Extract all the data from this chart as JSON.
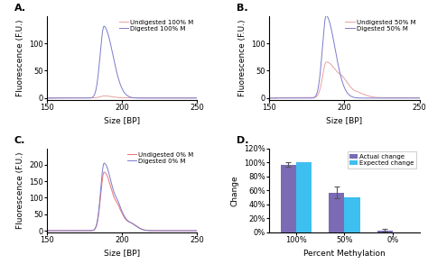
{
  "panel_A": {
    "label": "A.",
    "undigested_color": "#7b7bcd",
    "digested_color": "#e8a0a0",
    "legend": [
      "Undigested 100% M",
      "Digested 100% M"
    ],
    "xlim": [
      150,
      250
    ],
    "ylim": [
      -3,
      150
    ],
    "yticks": [
      0,
      50,
      100
    ],
    "xlabel": "Size [BP]",
    "ylabel": "Fluorescence (F.U.)"
  },
  "panel_B": {
    "label": "B.",
    "undigested_color": "#7b7bcd",
    "digested_color": "#e8a0a0",
    "legend": [
      "Undigested 50% M",
      "Digested 50% M"
    ],
    "xlim": [
      150,
      250
    ],
    "ylim": [
      -3,
      150
    ],
    "yticks": [
      0,
      50,
      100
    ],
    "xlabel": "Size [BP]",
    "ylabel": "Fluorescence (F.U.)"
  },
  "panel_C": {
    "label": "C.",
    "undigested_color": "#7b7bcd",
    "digested_color": "#e87575",
    "legend": [
      "Undigested 0% M",
      "Digested 0% M"
    ],
    "xlim": [
      150,
      250
    ],
    "ylim": [
      -5,
      250
    ],
    "yticks": [
      0,
      50,
      100,
      150,
      200
    ],
    "xlabel": "Size [BP]",
    "ylabel": "Fluorescence (F.U.)"
  },
  "panel_D": {
    "label": "D.",
    "categories": [
      "100%",
      "50%",
      "0%"
    ],
    "actual_values": [
      97,
      57,
      3
    ],
    "expected_values": [
      100,
      50,
      0
    ],
    "actual_errors": [
      3,
      8,
      1.5
    ],
    "actual_color": "#7b6bb5",
    "expected_color": "#3dbfef",
    "ylim": [
      0,
      120
    ],
    "yticks": [
      0,
      20,
      40,
      60,
      80,
      100,
      120
    ],
    "xlabel": "Percent Methylation",
    "ylabel": "Change",
    "legend": [
      "Actual change",
      "Expected change"
    ]
  },
  "bg_color": "#ffffff",
  "font_size": 6.5,
  "label_font_size": 8
}
